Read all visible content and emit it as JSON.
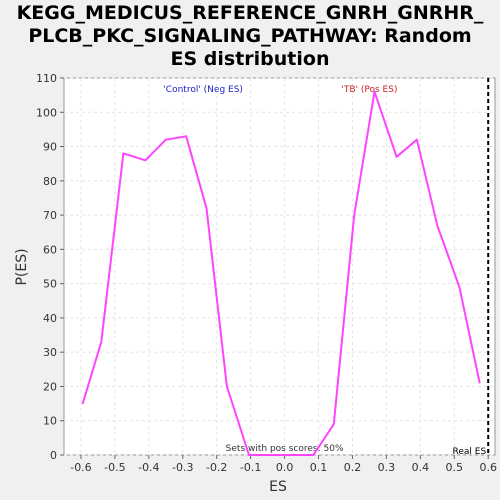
{
  "chart_data": {
    "type": "line",
    "title_lines": [
      "KEGG_MEDICUS_REFERENCE_GNRH_GNRHR_",
      "PLCB_PKC_SIGNALING_PATHWAY: Random",
      "ES distribution"
    ],
    "xlabel": "ES",
    "ylabel": "P(ES)",
    "xlim": [
      -0.65,
      0.62
    ],
    "ylim": [
      0,
      110
    ],
    "xticks": [
      "-0.6",
      "-0.5",
      "-0.4",
      "-0.3",
      "-0.2",
      "-0.1",
      "0.0",
      "0.1",
      "0.2",
      "0.3",
      "0.4",
      "0.5",
      "0.6"
    ],
    "xtick_values": [
      -0.6,
      -0.5,
      -0.4,
      -0.3,
      -0.2,
      -0.1,
      0.0,
      0.1,
      0.2,
      0.3,
      0.4,
      0.5,
      0.6
    ],
    "yticks": [
      "0",
      "10",
      "20",
      "30",
      "40",
      "50",
      "60",
      "70",
      "80",
      "90",
      "100",
      "110"
    ],
    "ytick_values": [
      0,
      10,
      20,
      30,
      40,
      50,
      60,
      70,
      80,
      90,
      100,
      110
    ],
    "grid": true,
    "series": [
      {
        "color": "#ff44ff",
        "x": [
          -0.595,
          -0.54,
          -0.475,
          -0.41,
          -0.35,
          -0.29,
          -0.23,
          -0.17,
          -0.105,
          -0.045,
          0.02,
          0.085,
          0.145,
          0.205,
          0.265,
          0.33,
          0.39,
          0.45,
          0.515,
          0.575
        ],
        "y": [
          15,
          33,
          88,
          86,
          92,
          93,
          72,
          20,
          0,
          0,
          0,
          0,
          9,
          70,
          106,
          87,
          92,
          67,
          49,
          21
        ]
      }
    ],
    "real_es": 0.6,
    "annotations": {
      "neg_label": "'Control' (Neg ES)",
      "pos_label": "'TB' (Pos ES)",
      "sets_label": "Sets with pos scores: 50%",
      "real_es_label": "Real ES"
    },
    "colors": {
      "neg_label": "#2222cc",
      "pos_label": "#cc2222",
      "line": "#ff44ff"
    }
  }
}
